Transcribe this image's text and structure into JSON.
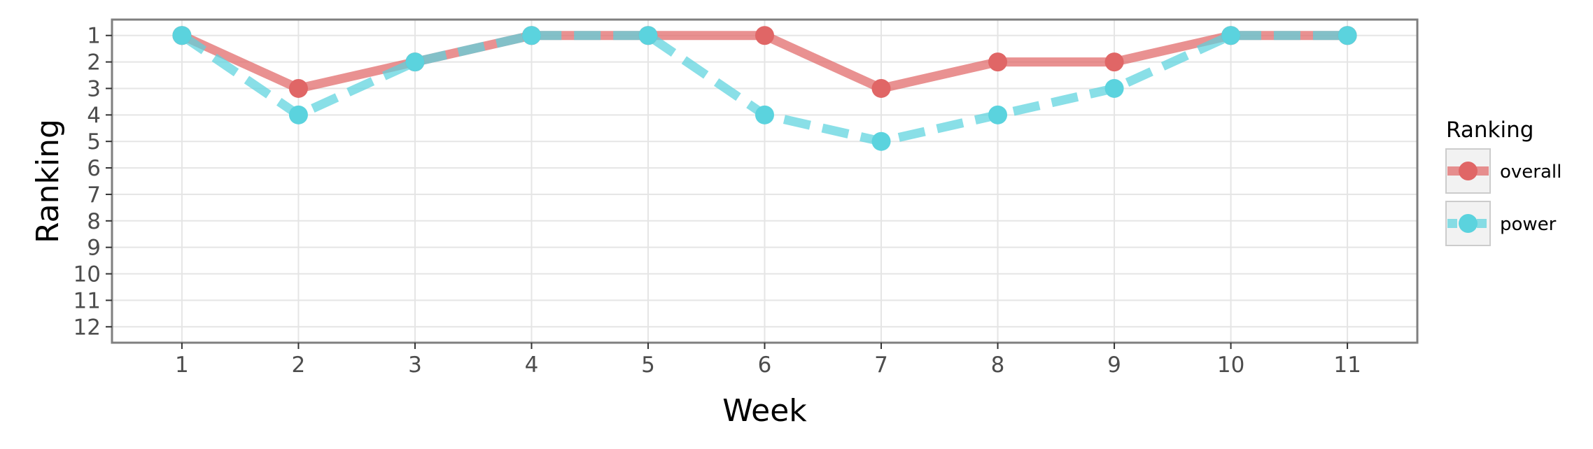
{
  "chart_data": {
    "type": "line",
    "title": "",
    "xlabel": "Week",
    "ylabel": "Ranking",
    "x": [
      1,
      2,
      3,
      4,
      5,
      6,
      7,
      8,
      9,
      10,
      11
    ],
    "xlim": [
      0.4,
      11.6
    ],
    "ylim": [
      12.6,
      0.4
    ],
    "y_reversed": true,
    "y_ticks": [
      1,
      2,
      3,
      4,
      5,
      6,
      7,
      8,
      9,
      10,
      11,
      12
    ],
    "x_ticks": [
      1,
      2,
      3,
      4,
      5,
      6,
      7,
      8,
      9,
      10,
      11
    ],
    "grid": true,
    "legend_title": "Ranking",
    "legend_position": "right",
    "series": [
      {
        "name": "overall",
        "values": [
          1,
          3,
          2,
          1,
          1,
          1,
          3,
          2,
          2,
          1,
          1
        ],
        "color": "#e06666",
        "line_style": "solid"
      },
      {
        "name": "power",
        "values": [
          1,
          4,
          2,
          1,
          1,
          4,
          5,
          4,
          3,
          1,
          1
        ],
        "color": "#5bd3de",
        "line_style": "dashed"
      }
    ]
  }
}
